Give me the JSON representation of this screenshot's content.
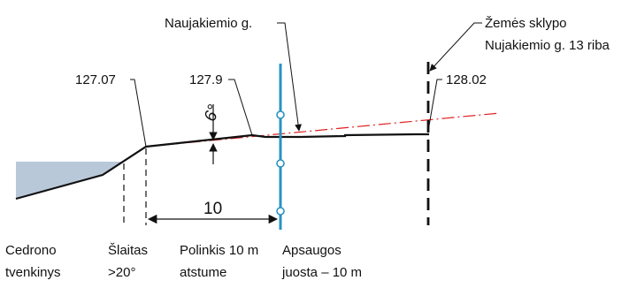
{
  "labels": {
    "elev_left": "127.07",
    "elev_mid": "127.9",
    "elev_right": "128.02",
    "street": "Naujakiemio g.",
    "plot_line1": "Žemės sklypo",
    "plot_line2": "Nujakiemio g. 13 riba",
    "angle": "6°",
    "dimension": "10",
    "pond_line1": "Cedrono",
    "pond_line2": "tvenkinys",
    "slope_line1": "Šlaitas",
    "slope_line2": ">20°",
    "incline_line1": "Polinkis 10 m",
    "incline_line2": "atstume",
    "zone_line1": "Apsaugos",
    "zone_line2": "juosta – 10 m"
  },
  "colors": {
    "water": "#b8c8d8",
    "protection_line": "#2a93c0",
    "reference_line": "#e02020",
    "ink": "#111111"
  }
}
